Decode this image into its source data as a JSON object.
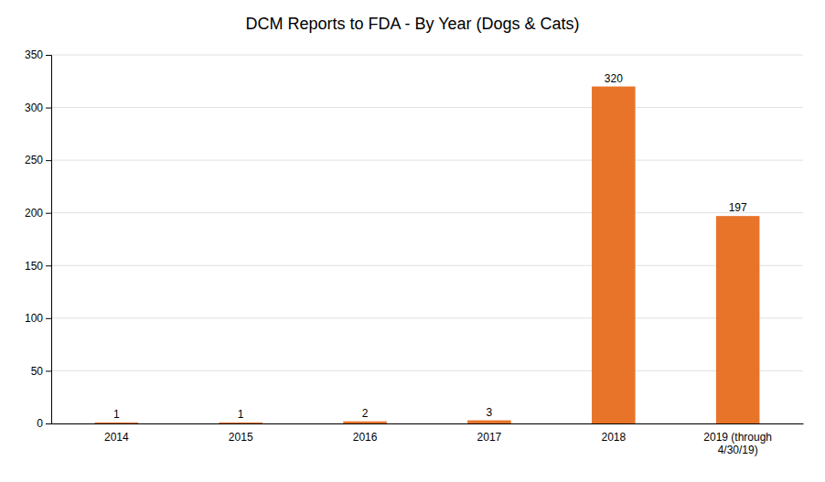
{
  "chart_data": {
    "type": "bar",
    "title": "DCM Reports to FDA - By Year (Dogs & Cats)",
    "categories": [
      "2014",
      "2015",
      "2016",
      "2017",
      "2018",
      "2019 (through\n4/30/19)"
    ],
    "values": [
      1,
      1,
      2,
      3,
      320,
      197
    ],
    "color": "#E8742A",
    "ylim": [
      0,
      350
    ],
    "yticks": [
      0,
      50,
      100,
      150,
      200,
      250,
      300,
      350
    ],
    "grid": true,
    "data_labels": true
  }
}
